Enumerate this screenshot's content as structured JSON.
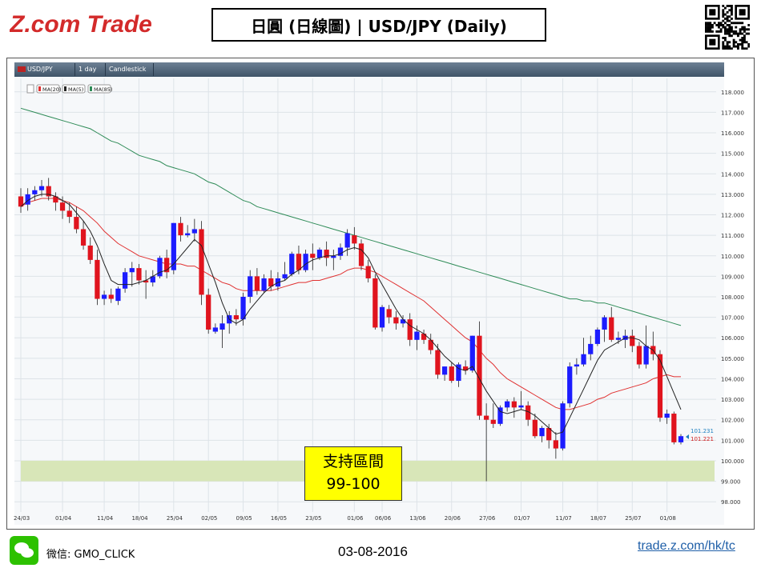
{
  "header": {
    "brand": "Z.com Trade",
    "title": "日圓 (日線圖) | USD/JPY  (Daily)"
  },
  "toolbar": {
    "symbol": "USD/JPY",
    "timeframe": "1 day",
    "chart_type": "Candlestick"
  },
  "legend": {
    "items": [
      {
        "label": "MA(20)",
        "color": "#e03030"
      },
      {
        "label": "MA(5)",
        "color": "#222222"
      },
      {
        "label": "MA(85)",
        "color": "#2e8b57"
      }
    ]
  },
  "annotation": {
    "line1": "支持區間",
    "line2": "99-100"
  },
  "footer": {
    "wechat_label": "微信: GMO_CLICK",
    "date": "03-08-2016",
    "url": "trade.z.com/hk/tc"
  },
  "colors": {
    "up": "#1c1cff",
    "down": "#e0141e",
    "ma20": "#e03030",
    "ma5": "#222222",
    "ma85": "#2e8b57",
    "support_zone": "#d8e6b8"
  },
  "chart_data": {
    "type": "candlestick",
    "title": "USD/JPY",
    "ylim": [
      97.5,
      118.5
    ],
    "yticks": [
      98,
      99,
      100,
      101,
      102,
      103,
      104,
      105,
      106,
      107,
      108,
      109,
      110,
      111,
      112,
      113,
      114,
      115,
      116,
      117,
      118
    ],
    "xticks": [
      "24/03",
      "01/04",
      "11/04",
      "18/04",
      "25/04",
      "02/05",
      "09/05",
      "16/05",
      "23/05",
      "01/06",
      "06/06",
      "13/06",
      "20/06",
      "27/06",
      "01/07",
      "11/07",
      "18/07",
      "25/07",
      "01/08"
    ],
    "xtick_index": [
      0,
      6,
      12,
      17,
      22,
      27,
      32,
      37,
      42,
      48,
      52,
      57,
      62,
      67,
      72,
      78,
      83,
      88,
      93
    ],
    "candles": [
      [
        112.9,
        113.3,
        112.1,
        112.4
      ],
      [
        112.5,
        113.3,
        112.2,
        113.0
      ],
      [
        113.0,
        113.4,
        112.7,
        113.2
      ],
      [
        113.2,
        113.7,
        112.9,
        113.4
      ],
      [
        113.4,
        113.8,
        112.7,
        112.9
      ],
      [
        112.9,
        113.1,
        112.2,
        112.6
      ],
      [
        112.6,
        112.9,
        111.8,
        112.2
      ],
      [
        112.2,
        112.6,
        111.6,
        111.9
      ],
      [
        111.9,
        112.4,
        111.1,
        111.3
      ],
      [
        111.3,
        111.7,
        110.3,
        110.5
      ],
      [
        110.5,
        110.9,
        109.6,
        109.8
      ],
      [
        109.8,
        110.3,
        107.6,
        107.9
      ],
      [
        107.9,
        108.3,
        107.6,
        108.1
      ],
      [
        108.1,
        108.4,
        107.7,
        107.9
      ],
      [
        107.8,
        108.5,
        107.6,
        108.4
      ],
      [
        108.4,
        109.4,
        108.2,
        109.2
      ],
      [
        109.2,
        109.7,
        108.5,
        109.4
      ],
      [
        109.4,
        109.6,
        108.6,
        108.8
      ],
      [
        108.8,
        109.3,
        107.9,
        108.7
      ],
      [
        108.7,
        109.3,
        108.5,
        109.0
      ],
      [
        109.0,
        110.0,
        108.9,
        109.9
      ],
      [
        109.9,
        110.3,
        108.9,
        109.2
      ],
      [
        109.3,
        111.6,
        109.1,
        111.6
      ],
      [
        111.6,
        111.9,
        110.7,
        111.0
      ],
      [
        111.0,
        111.5,
        110.9,
        111.1
      ],
      [
        111.1,
        111.8,
        110.7,
        111.3
      ],
      [
        111.3,
        111.7,
        107.6,
        108.1
      ],
      [
        108.1,
        108.4,
        106.2,
        106.4
      ],
      [
        106.3,
        106.7,
        106.2,
        106.5
      ],
      [
        106.4,
        107.1,
        105.5,
        106.7
      ],
      [
        106.7,
        107.3,
        106.2,
        107.1
      ],
      [
        107.1,
        107.4,
        106.6,
        106.9
      ],
      [
        106.9,
        108.2,
        106.6,
        108.0
      ],
      [
        108.0,
        109.3,
        107.7,
        109.0
      ],
      [
        109.0,
        109.4,
        108.1,
        108.3
      ],
      [
        108.3,
        109.1,
        108.2,
        108.9
      ],
      [
        108.9,
        109.3,
        108.3,
        108.5
      ],
      [
        108.5,
        109.2,
        108.3,
        108.9
      ],
      [
        108.9,
        109.7,
        108.8,
        109.1
      ],
      [
        109.1,
        110.2,
        109.0,
        110.1
      ],
      [
        110.1,
        110.5,
        109.1,
        109.3
      ],
      [
        109.3,
        110.3,
        109.2,
        110.1
      ],
      [
        110.1,
        110.6,
        109.3,
        109.9
      ],
      [
        109.9,
        110.4,
        109.8,
        110.3
      ],
      [
        110.3,
        110.7,
        109.5,
        109.9
      ],
      [
        109.9,
        110.3,
        109.3,
        110.0
      ],
      [
        110.0,
        110.6,
        109.8,
        110.4
      ],
      [
        110.4,
        111.3,
        110.0,
        111.1
      ],
      [
        111.0,
        111.4,
        110.3,
        110.6
      ],
      [
        110.6,
        110.8,
        109.3,
        109.5
      ],
      [
        109.5,
        109.8,
        108.7,
        108.9
      ],
      [
        108.9,
        109.1,
        106.4,
        106.5
      ],
      [
        106.5,
        107.6,
        106.3,
        107.5
      ],
      [
        107.4,
        107.6,
        106.7,
        107.0
      ],
      [
        107.0,
        107.3,
        106.4,
        106.7
      ],
      [
        106.7,
        107.1,
        106.5,
        106.9
      ],
      [
        106.9,
        107.2,
        105.6,
        105.9
      ],
      [
        105.9,
        106.6,
        105.4,
        106.3
      ],
      [
        106.2,
        106.4,
        105.7,
        105.9
      ],
      [
        105.9,
        106.2,
        105.2,
        105.4
      ],
      [
        105.4,
        105.7,
        104.0,
        104.2
      ],
      [
        104.2,
        104.6,
        103.9,
        104.6
      ],
      [
        104.6,
        104.8,
        103.8,
        103.9
      ],
      [
        103.9,
        104.8,
        103.6,
        104.7
      ],
      [
        104.6,
        104.9,
        104.2,
        104.4
      ],
      [
        104.4,
        106.1,
        104.3,
        106.1
      ],
      [
        106.1,
        106.8,
        102.0,
        102.2
      ],
      [
        102.2,
        102.8,
        99.0,
        102.0
      ],
      [
        102.0,
        102.8,
        101.6,
        101.8
      ],
      [
        101.8,
        102.7,
        101.7,
        102.6
      ],
      [
        102.6,
        103.0,
        102.4,
        102.9
      ],
      [
        102.9,
        103.1,
        102.1,
        102.6
      ],
      [
        102.6,
        103.4,
        102.5,
        102.7
      ],
      [
        102.7,
        102.9,
        101.7,
        102.0
      ],
      [
        102.0,
        102.3,
        101.1,
        101.2
      ],
      [
        101.2,
        101.7,
        100.9,
        101.6
      ],
      [
        101.6,
        101.8,
        100.6,
        101.0
      ],
      [
        101.0,
        101.4,
        100.1,
        100.6
      ],
      [
        100.6,
        102.9,
        100.5,
        102.8
      ],
      [
        102.8,
        104.8,
        102.6,
        104.6
      ],
      [
        104.6,
        105.0,
        104.2,
        104.7
      ],
      [
        104.7,
        106.0,
        104.6,
        105.2
      ],
      [
        105.2,
        106.1,
        104.9,
        105.7
      ],
      [
        105.7,
        106.5,
        105.6,
        106.4
      ],
      [
        106.4,
        107.1,
        105.8,
        107.0
      ],
      [
        107.0,
        107.5,
        105.8,
        105.9
      ],
      [
        105.9,
        106.3,
        105.7,
        106.0
      ],
      [
        105.9,
        106.4,
        105.5,
        106.1
      ],
      [
        106.1,
        106.4,
        105.3,
        105.6
      ],
      [
        105.6,
        105.8,
        104.5,
        104.7
      ],
      [
        104.7,
        106.6,
        104.5,
        105.6
      ],
      [
        105.6,
        106.3,
        104.9,
        105.2
      ],
      [
        105.2,
        105.4,
        101.9,
        102.1
      ],
      [
        102.1,
        102.5,
        101.8,
        102.3
      ],
      [
        102.3,
        102.4,
        100.8,
        100.9
      ],
      [
        100.9,
        101.3,
        100.8,
        101.2
      ]
    ],
    "ma5": [
      112.4,
      112.7,
      112.9,
      113.0,
      113.0,
      112.9,
      112.7,
      112.5,
      112.1,
      111.7,
      111.2,
      110.5,
      109.6,
      108.8,
      108.6,
      108.6,
      108.6,
      108.7,
      108.8,
      109.0,
      109.2,
      109.3,
      109.6,
      110.0,
      110.4,
      110.8,
      110.5,
      109.6,
      108.7,
      107.7,
      106.9,
      106.7,
      106.9,
      107.4,
      107.8,
      108.2,
      108.5,
      108.7,
      108.8,
      109.1,
      109.3,
      109.6,
      109.8,
      109.9,
      110.0,
      110.0,
      110.1,
      110.3,
      110.4,
      110.3,
      109.9,
      109.2,
      108.6,
      108.0,
      107.4,
      106.9,
      106.6,
      106.4,
      106.2,
      105.9,
      105.5,
      105.1,
      104.8,
      104.5,
      104.4,
      104.6,
      104.0,
      103.4,
      102.9,
      102.4,
      102.3,
      102.4,
      102.5,
      102.4,
      102.2,
      101.9,
      101.6,
      101.3,
      101.4,
      102.1,
      102.8,
      103.5,
      104.2,
      104.9,
      105.4,
      105.6,
      105.8,
      106.0,
      106.0,
      105.9,
      105.6,
      105.4,
      104.9,
      104.1,
      103.3,
      102.5
    ],
    "ma20": [
      112.4,
      112.6,
      112.7,
      112.8,
      112.8,
      112.8,
      112.7,
      112.6,
      112.4,
      112.2,
      111.9,
      111.6,
      111.2,
      110.9,
      110.6,
      110.4,
      110.2,
      110.0,
      109.9,
      109.8,
      109.7,
      109.6,
      109.6,
      109.6,
      109.5,
      109.5,
      109.3,
      109.1,
      108.9,
      108.7,
      108.6,
      108.4,
      108.3,
      108.3,
      108.3,
      108.3,
      108.3,
      108.4,
      108.5,
      108.6,
      108.7,
      108.7,
      108.8,
      108.8,
      108.9,
      109.0,
      109.1,
      109.3,
      109.4,
      109.4,
      109.3,
      109.2,
      109.0,
      108.8,
      108.6,
      108.4,
      108.2,
      108.0,
      107.8,
      107.5,
      107.2,
      106.9,
      106.6,
      106.3,
      106.0,
      105.8,
      105.4,
      105.0,
      104.7,
      104.3,
      104.0,
      103.8,
      103.6,
      103.4,
      103.2,
      103.0,
      102.8,
      102.6,
      102.5,
      102.5,
      102.6,
      102.7,
      102.8,
      103.0,
      103.1,
      103.3,
      103.4,
      103.5,
      103.6,
      103.7,
      103.8,
      104.0,
      104.1,
      104.2,
      104.1,
      104.1
    ],
    "ma85": [
      117.2,
      117.1,
      117.0,
      116.9,
      116.8,
      116.7,
      116.6,
      116.5,
      116.4,
      116.3,
      116.2,
      116.0,
      115.8,
      115.6,
      115.5,
      115.3,
      115.1,
      114.9,
      114.8,
      114.7,
      114.6,
      114.4,
      114.3,
      114.2,
      114.1,
      114.0,
      113.8,
      113.6,
      113.5,
      113.3,
      113.1,
      112.9,
      112.7,
      112.6,
      112.4,
      112.3,
      112.2,
      112.1,
      112.0,
      111.9,
      111.8,
      111.7,
      111.6,
      111.5,
      111.4,
      111.3,
      111.2,
      111.1,
      111.0,
      110.9,
      110.8,
      110.7,
      110.6,
      110.5,
      110.4,
      110.3,
      110.2,
      110.1,
      110.0,
      109.9,
      109.8,
      109.7,
      109.6,
      109.5,
      109.4,
      109.3,
      109.2,
      109.1,
      109.0,
      108.9,
      108.8,
      108.7,
      108.6,
      108.5,
      108.4,
      108.3,
      108.2,
      108.1,
      108.0,
      107.9,
      107.9,
      107.8,
      107.8,
      107.7,
      107.7,
      107.6,
      107.5,
      107.4,
      107.3,
      107.2,
      107.1,
      107.0,
      106.9,
      106.8,
      106.7,
      106.6
    ],
    "support_zone": [
      99,
      100
    ],
    "last_prices": [
      "101.231",
      "101.221"
    ]
  }
}
